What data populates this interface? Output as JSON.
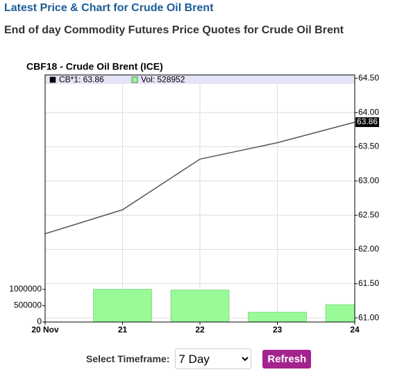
{
  "header": {
    "title": "Latest Price & Chart for Crude Oil Brent",
    "subtitle": "End of day Commodity Futures Price Quotes for Crude Oil Brent"
  },
  "chart_data": {
    "type": "line",
    "title": "CBF18 - Crude Oil Brent (ICE)",
    "categories": [
      "20 Nov",
      "21",
      "22",
      "23",
      "24"
    ],
    "series": [
      {
        "name": "CB*1: 63.86",
        "color": "#555555",
        "values": [
          62.23,
          62.58,
          63.32,
          63.56,
          63.86
        ]
      },
      {
        "name": "Vol: 528952",
        "color": "#98fb98",
        "type": "bar",
        "axis": "y2",
        "values": [
          null,
          1000000,
          980000,
          298000,
          528952
        ]
      }
    ],
    "ylim": [
      60.94,
      64.55
    ],
    "yticks": [
      {
        "value": 61,
        "label": "61.00"
      },
      {
        "value": 61.5,
        "label": "61.50"
      },
      {
        "value": 62,
        "label": "62.00"
      },
      {
        "value": 62.5,
        "label": "62.50"
      },
      {
        "value": 63,
        "label": "63.00"
      },
      {
        "value": 63.5,
        "label": "63.50"
      },
      {
        "value": 64,
        "label": "64.00"
      },
      {
        "value": 64.5,
        "label": "64.50"
      }
    ],
    "y2lim": [
      0,
      7570000
    ],
    "y2ticks": [
      0,
      500000,
      1000000
    ],
    "grid": true
  },
  "controls": {
    "label": "Select Timeframe:",
    "timeframe": "7 Day",
    "button": "Refresh"
  }
}
